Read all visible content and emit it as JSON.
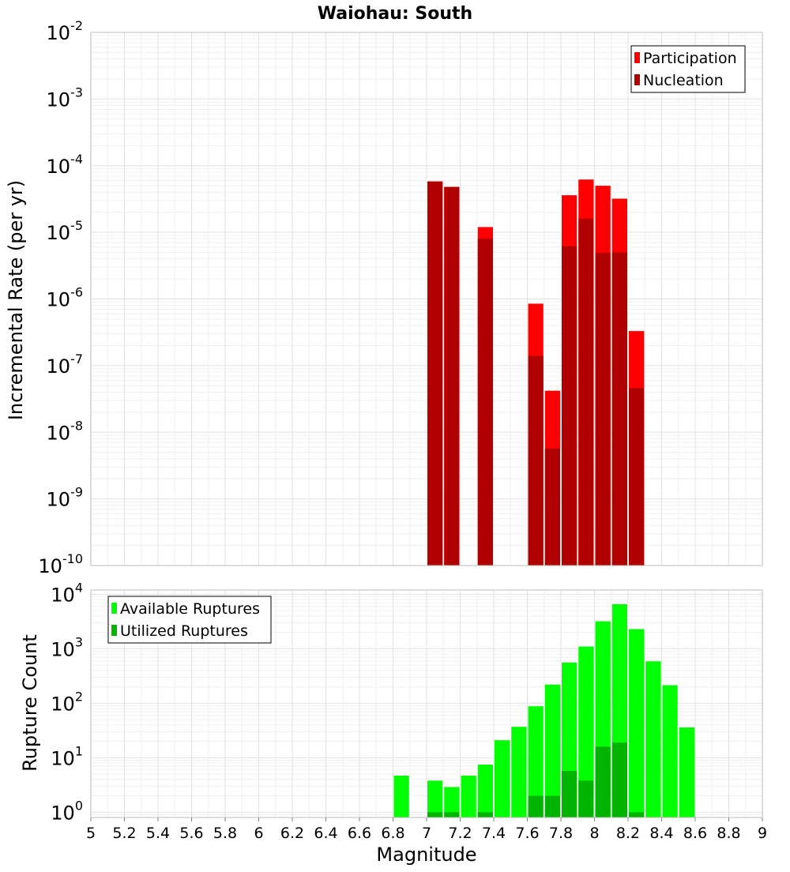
{
  "chart_data": [
    {
      "type": "bar",
      "title": "Waiohau: South",
      "xlabel": "Magnitude",
      "ylabel": "Incremental Rate (per yr)",
      "xlim": [
        5,
        9
      ],
      "ylim": [
        1e-10,
        0.01
      ],
      "yscale": "log",
      "grid": true,
      "legend_position": "top-right",
      "bin_width": 0.1,
      "y_tick_labels": [
        {
          "base": "10",
          "exp": "-10"
        },
        {
          "base": "10",
          "exp": "-9"
        },
        {
          "base": "10",
          "exp": "-8"
        },
        {
          "base": "10",
          "exp": "-7"
        },
        {
          "base": "10",
          "exp": "-6"
        },
        {
          "base": "10",
          "exp": "-5"
        },
        {
          "base": "10",
          "exp": "-4"
        },
        {
          "base": "10",
          "exp": "-3"
        },
        {
          "base": "10",
          "exp": "-2"
        }
      ],
      "series": [
        {
          "name": "Participation",
          "color": "#ff0000",
          "points": [
            {
              "x": 7.05,
              "y": 5.8e-05
            },
            {
              "x": 7.15,
              "y": 4.8e-05
            },
            {
              "x": 7.35,
              "y": 1.2e-05
            },
            {
              "x": 7.65,
              "y": 8.5e-07
            },
            {
              "x": 7.75,
              "y": 4.2e-08
            },
            {
              "x": 7.85,
              "y": 3.6e-05
            },
            {
              "x": 7.95,
              "y": 6.2e-05
            },
            {
              "x": 8.05,
              "y": 5e-05
            },
            {
              "x": 8.15,
              "y": 3.2e-05
            },
            {
              "x": 8.25,
              "y": 3.3e-07
            }
          ]
        },
        {
          "name": "Nucleation",
          "color": "#b00000",
          "points": [
            {
              "x": 7.05,
              "y": 5.8e-05
            },
            {
              "x": 7.15,
              "y": 4.8e-05
            },
            {
              "x": 7.35,
              "y": 8e-06
            },
            {
              "x": 7.65,
              "y": 1.4e-07
            },
            {
              "x": 7.75,
              "y": 5.7e-09
            },
            {
              "x": 7.85,
              "y": 6.2e-06
            },
            {
              "x": 7.95,
              "y": 1.6e-05
            },
            {
              "x": 8.05,
              "y": 4.9e-06
            },
            {
              "x": 8.15,
              "y": 5e-06
            },
            {
              "x": 8.25,
              "y": 4.6e-08
            }
          ]
        }
      ]
    },
    {
      "type": "bar",
      "title": "",
      "xlabel": "Magnitude",
      "ylabel": "Rupture Count",
      "xlim": [
        5,
        9
      ],
      "ylim": [
        0.8,
        12000
      ],
      "yscale": "log",
      "grid": true,
      "legend_position": "top-left",
      "bin_width": 0.1,
      "x_tick_labels": [
        "5",
        "5.2",
        "5.4",
        "5.6",
        "5.8",
        "6",
        "6.2",
        "6.4",
        "6.6",
        "6.8",
        "7",
        "7.2",
        "7.4",
        "7.6",
        "7.8",
        "8",
        "8.2",
        "8.4",
        "8.6",
        "8.8",
        "9"
      ],
      "y_tick_labels": [
        {
          "base": "10",
          "exp": "0"
        },
        {
          "base": "10",
          "exp": "1"
        },
        {
          "base": "10",
          "exp": "2"
        },
        {
          "base": "10",
          "exp": "3"
        },
        {
          "base": "10",
          "exp": "4"
        }
      ],
      "series": [
        {
          "name": "Available Ruptures",
          "color": "#00ff00",
          "points": [
            {
              "x": 6.85,
              "y": 4.7
            },
            {
              "x": 7.05,
              "y": 3.8
            },
            {
              "x": 7.15,
              "y": 2.9
            },
            {
              "x": 7.25,
              "y": 4.7
            },
            {
              "x": 7.35,
              "y": 7.5
            },
            {
              "x": 7.45,
              "y": 21
            },
            {
              "x": 7.55,
              "y": 37
            },
            {
              "x": 7.65,
              "y": 88
            },
            {
              "x": 7.75,
              "y": 220
            },
            {
              "x": 7.85,
              "y": 560
            },
            {
              "x": 7.95,
              "y": 1100
            },
            {
              "x": 8.05,
              "y": 3200
            },
            {
              "x": 8.15,
              "y": 6600
            },
            {
              "x": 8.25,
              "y": 2300
            },
            {
              "x": 8.35,
              "y": 590
            },
            {
              "x": 8.45,
              "y": 215
            },
            {
              "x": 8.55,
              "y": 36
            }
          ]
        },
        {
          "name": "Utilized Ruptures",
          "color": "#00b400",
          "points": [
            {
              "x": 7.05,
              "y": 1
            },
            {
              "x": 7.15,
              "y": 1
            },
            {
              "x": 7.35,
              "y": 1
            },
            {
              "x": 7.65,
              "y": 2
            },
            {
              "x": 7.75,
              "y": 2
            },
            {
              "x": 7.85,
              "y": 5.7
            },
            {
              "x": 7.95,
              "y": 3.8
            },
            {
              "x": 8.05,
              "y": 16
            },
            {
              "x": 8.15,
              "y": 19
            },
            {
              "x": 8.25,
              "y": 1
            }
          ]
        }
      ]
    }
  ]
}
